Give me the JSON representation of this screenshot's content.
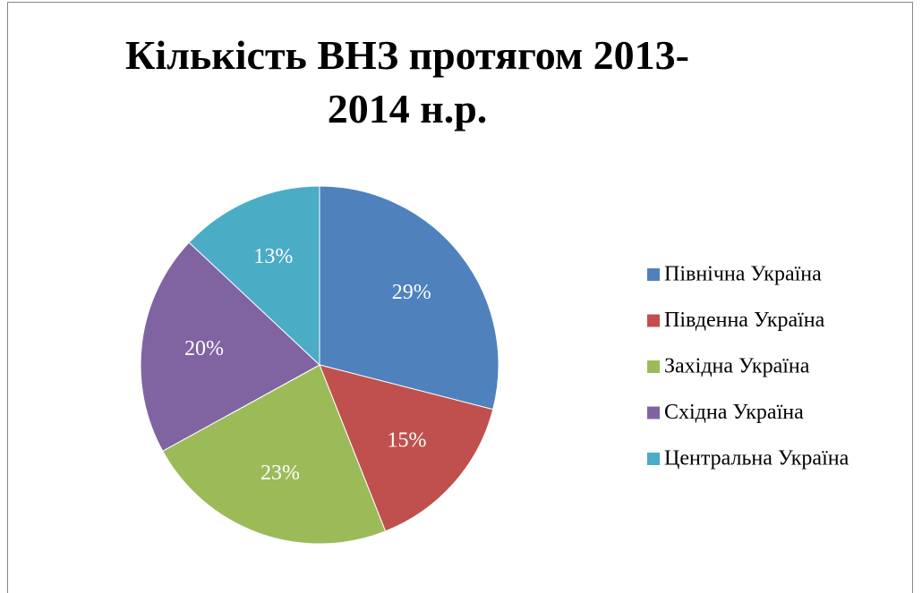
{
  "chart_data": {
    "type": "pie",
    "title": "Кількість ВНЗ протягом 2013-2014 н.р.",
    "categories": [
      "Північна Україна",
      "Південна Україна",
      "Західна Україна",
      "Східна Україна",
      "Центральна Україна"
    ],
    "values": [
      29,
      15,
      23,
      20,
      13
    ],
    "value_labels": [
      "29%",
      "15%",
      "23%",
      "20%",
      "13%"
    ],
    "colors": [
      "#4f81bd",
      "#c0504d",
      "#9bbb59",
      "#8064a2",
      "#4bacc6"
    ],
    "legend": "right"
  }
}
